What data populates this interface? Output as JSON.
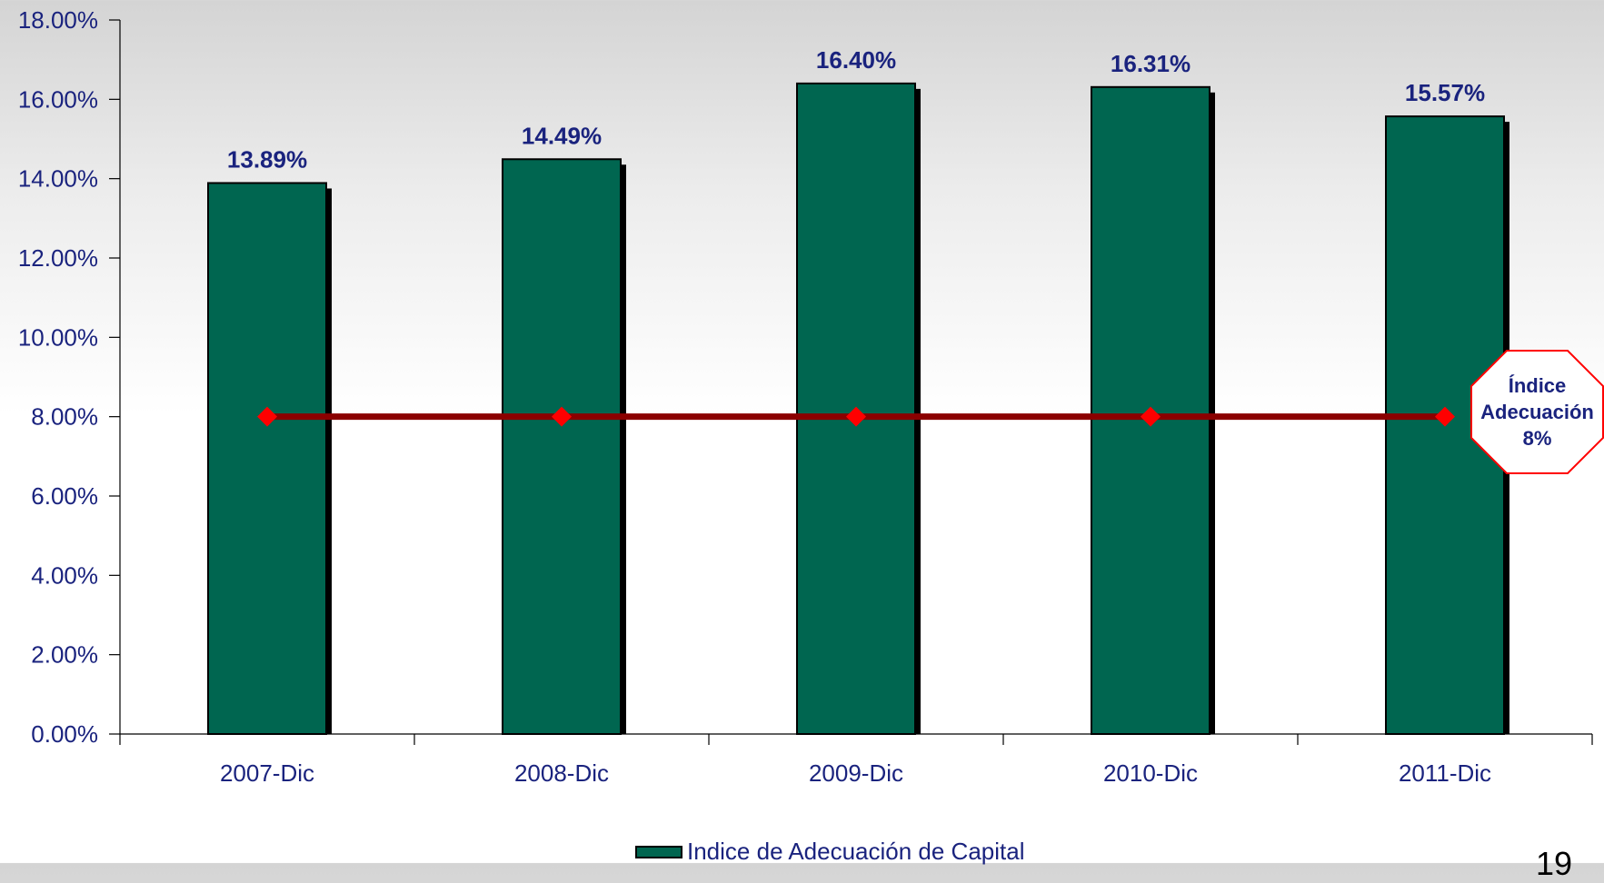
{
  "chart_data": {
    "type": "bar",
    "categories": [
      "2007-Dic",
      "2008-Dic",
      "2009-Dic",
      "2010-Dic",
      "2011-Dic"
    ],
    "series": [
      {
        "name": "Indice de Adecuación de Capital",
        "values": [
          13.89,
          14.49,
          16.4,
          16.31,
          15.57
        ],
        "color": "#006650"
      }
    ],
    "reference_line": {
      "values": [
        8,
        8,
        8,
        8,
        8
      ],
      "color": "#8b0000",
      "marker_color": "#ff0000"
    },
    "data_labels": [
      "13.89%",
      "14.49%",
      "16.40%",
      "16.31%",
      "15.57%"
    ],
    "y_ticks": [
      "0.00%",
      "2.00%",
      "4.00%",
      "6.00%",
      "8.00%",
      "10.00%",
      "12.00%",
      "14.00%",
      "16.00%",
      "18.00%"
    ],
    "ylim": [
      0,
      18
    ],
    "legend_position": "bottom",
    "grid": false
  },
  "callout": {
    "line1": "Índice",
    "line2": "Adecuación",
    "line3": "8%"
  },
  "legend": {
    "label": "Indice de Adecuación de Capital"
  },
  "page_number": "19"
}
